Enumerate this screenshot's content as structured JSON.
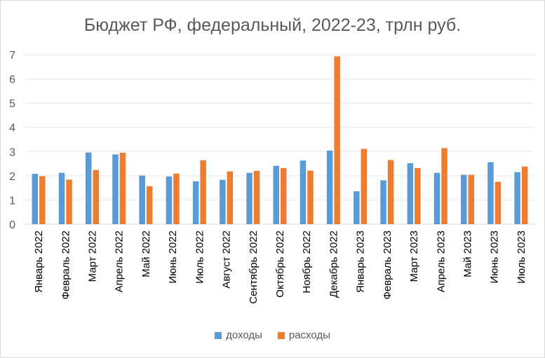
{
  "chart_data": {
    "type": "bar",
    "title": "Бюджет РФ, федеральный, 2022-23, трлн руб.",
    "xlabel": "",
    "ylabel": "",
    "ylim": [
      0,
      7
    ],
    "yticks": [
      0,
      1,
      2,
      3,
      4,
      5,
      6,
      7
    ],
    "grid": true,
    "legend": "bottom",
    "categories": [
      "Январь 2022",
      "Февраль 2022",
      "Март 2022",
      "Апрель 2022",
      "Май 2022",
      "Июнь 2022",
      "Июль 2022",
      "Август 2022",
      "Сентябрь 2022",
      "Октябрь 2022",
      "Ноябрь 2022",
      "Декабрь 2022",
      "Январь 2023",
      "Февраль 2023",
      "Март 2023",
      "Апрель 2023",
      "Май 2023",
      "Июнь 2023",
      "Июль 2023"
    ],
    "series": [
      {
        "name": "доходы",
        "color": "#5b9bd5",
        "values": [
          2.08,
          2.12,
          2.96,
          2.88,
          2.01,
          1.97,
          1.77,
          1.83,
          2.12,
          2.41,
          2.63,
          3.04,
          1.36,
          1.81,
          2.52,
          2.12,
          2.04,
          2.56,
          2.15
        ]
      },
      {
        "name": "расходы",
        "color": "#ed7d31",
        "values": [
          1.98,
          1.84,
          2.24,
          2.95,
          1.57,
          2.09,
          2.64,
          2.18,
          2.2,
          2.32,
          2.21,
          6.93,
          3.11,
          2.65,
          2.32,
          3.14,
          2.04,
          1.75,
          2.38
        ]
      }
    ]
  }
}
